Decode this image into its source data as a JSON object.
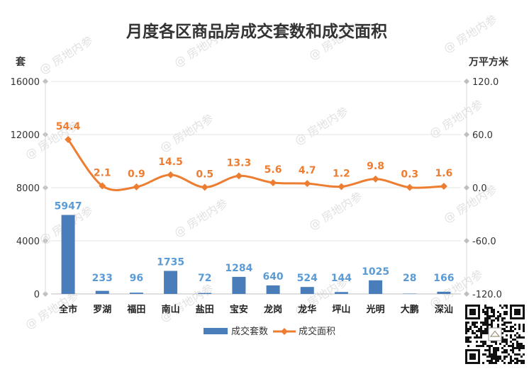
{
  "chart_data": {
    "type": "bar",
    "title": "月度各区商品房成交套数和成交面积",
    "ylabel": "套",
    "y2label": "万平方米",
    "ylim": [
      0,
      16000
    ],
    "yticks": [
      0,
      4000,
      8000,
      12000,
      16000
    ],
    "y2lim": [
      -120,
      120
    ],
    "y2ticks": [
      "-120.0",
      "-60.0",
      "0.0",
      "60.0",
      "120.0"
    ],
    "categories": [
      "全市",
      "罗湖",
      "福田",
      "南山",
      "盐田",
      "宝安",
      "龙岗",
      "龙华",
      "坪山",
      "光明",
      "大鹏",
      "深汕"
    ],
    "series": [
      {
        "name": "成交套数",
        "type": "bar",
        "axis": "left",
        "color": "#4a7ebb",
        "values": [
          5947,
          233,
          96,
          1735,
          72,
          1284,
          640,
          524,
          144,
          1025,
          28,
          166
        ],
        "labels": [
          "5947",
          "233",
          "96",
          "1735",
          "72",
          "1284",
          "640",
          "524",
          "144",
          "1025",
          "28",
          "166"
        ]
      },
      {
        "name": "成交面积",
        "type": "line",
        "axis": "right",
        "color": "#ed7d31",
        "values": [
          54.4,
          2.1,
          0.9,
          14.5,
          0.5,
          13.3,
          5.6,
          4.7,
          1.2,
          9.8,
          0.3,
          1.6
        ],
        "labels": [
          "54.4",
          "2.1",
          "0.9",
          "14.5",
          "0.5",
          "13.3",
          "5.6",
          "4.7",
          "1.2",
          "9.8",
          "0.3",
          "1.6"
        ]
      }
    ],
    "grid": true,
    "legend_position": "bottom"
  },
  "watermark": "@ 房地内参",
  "label_color_bar": "#5b9bd5",
  "label_color_line": "#ed7d31",
  "axis_color": "#bfbfbf"
}
